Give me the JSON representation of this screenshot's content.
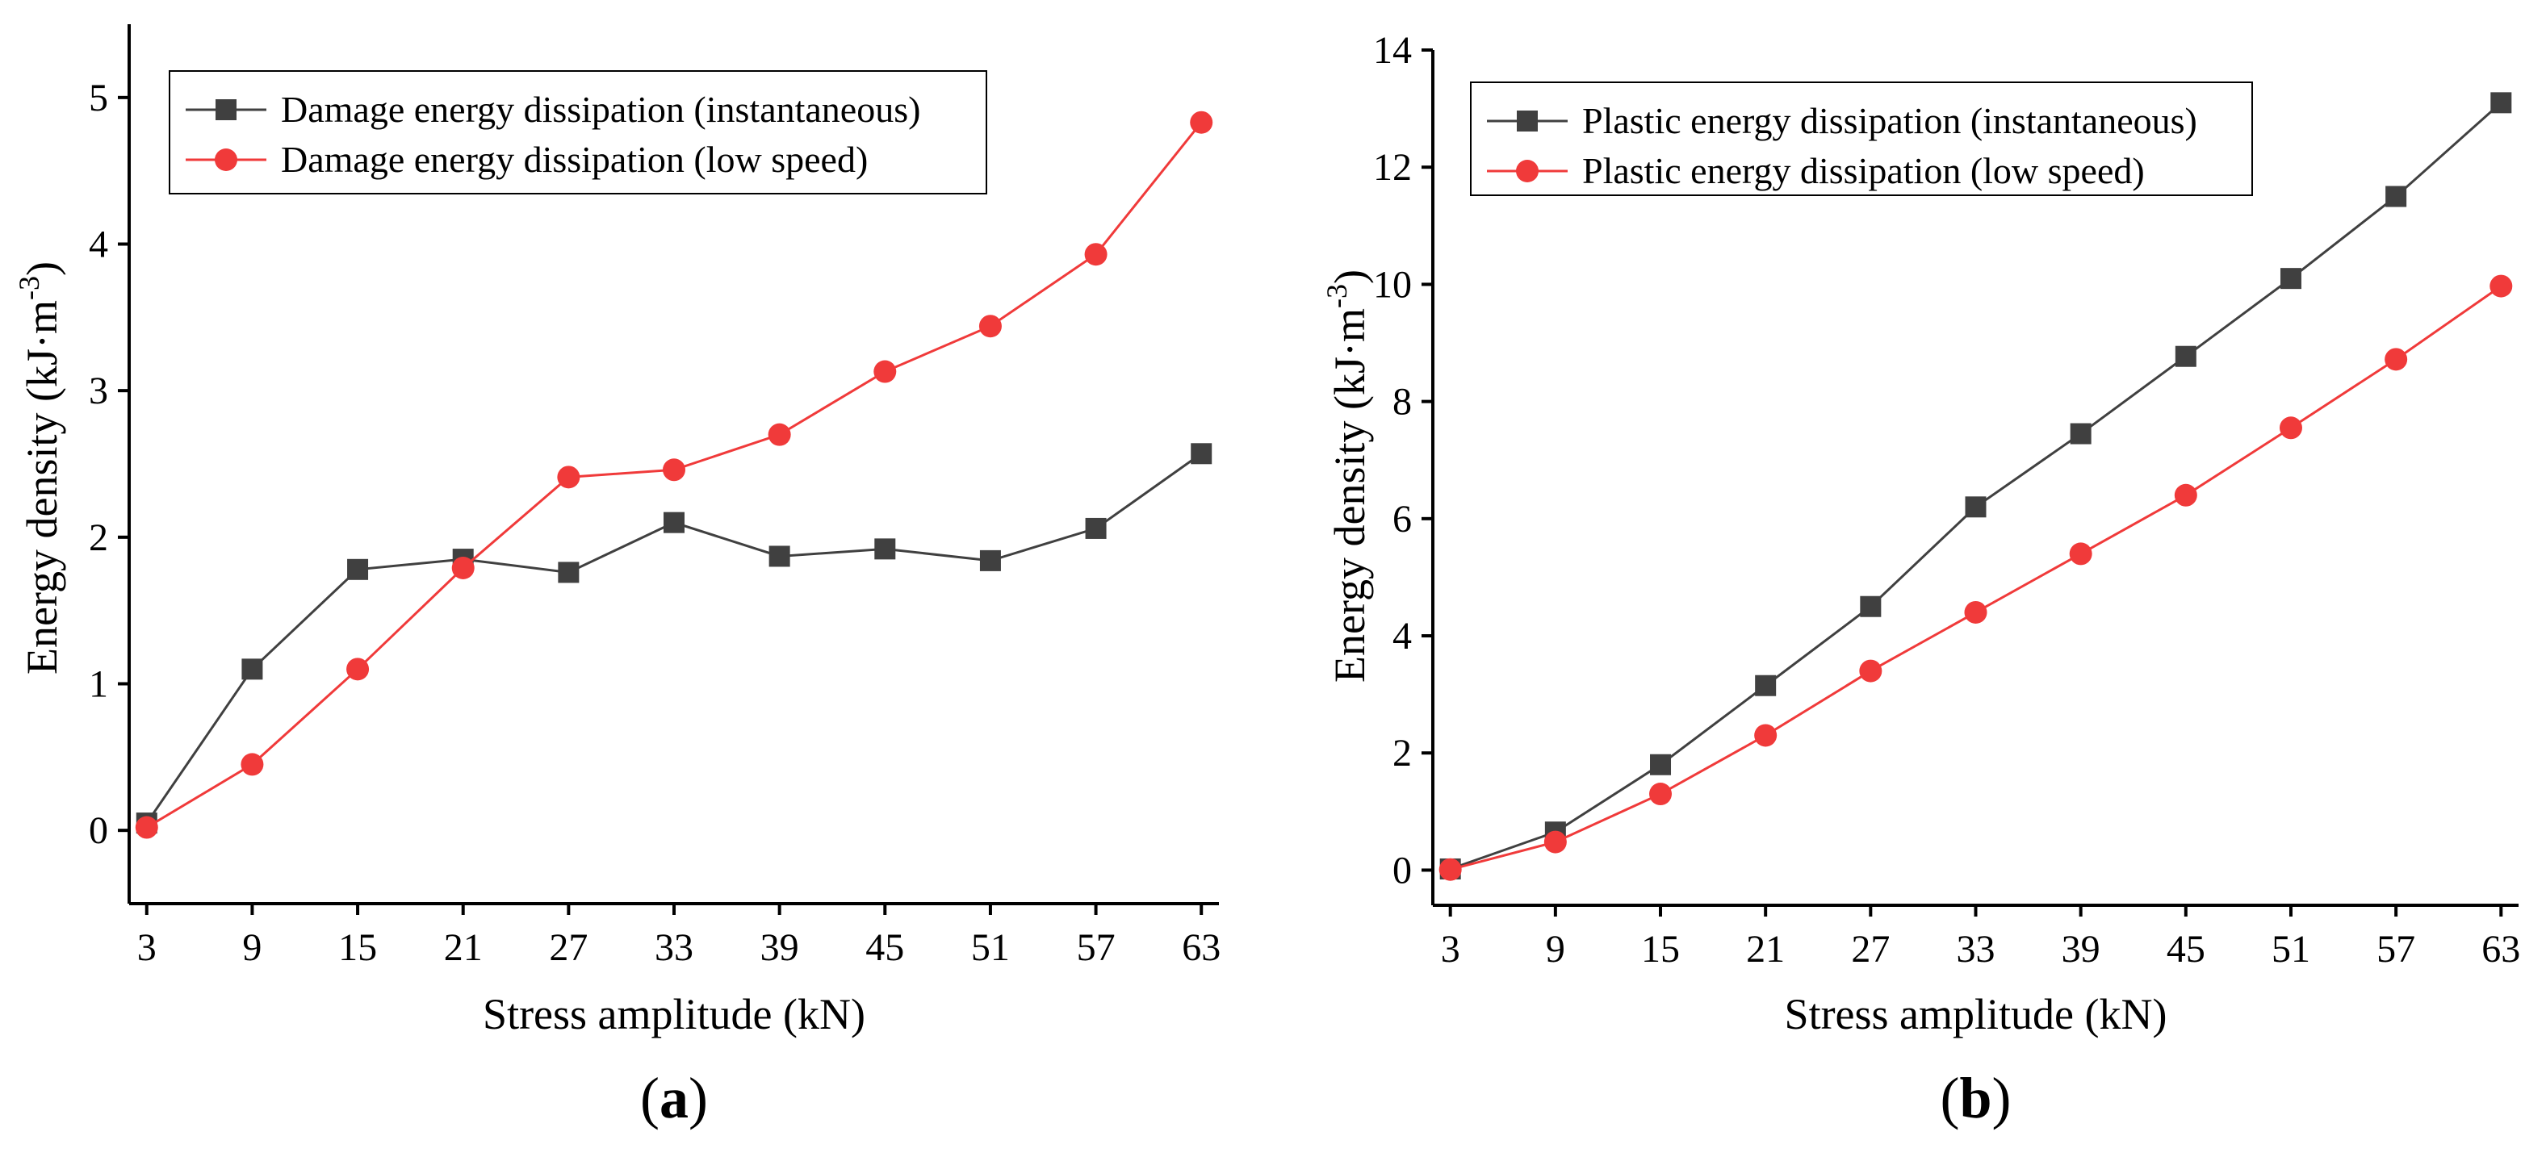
{
  "chart_data": [
    {
      "type": "line",
      "panel_label": "a",
      "xlabel": "Stress amplitude (kN)",
      "ylabel_main": "Energy density (kJ·m",
      "ylabel_sup": "-3",
      "ylabel_close": ")",
      "x": [
        3,
        9,
        15,
        21,
        27,
        33,
        39,
        45,
        51,
        57,
        63
      ],
      "x_ticks": [
        "3",
        "9",
        "15",
        "21",
        "27",
        "33",
        "39",
        "45",
        "51",
        "57",
        "63"
      ],
      "xlim": [
        2,
        64
      ],
      "ylim": [
        -0.5,
        5.5
      ],
      "y_ticks": [
        0,
        1,
        2,
        3,
        4,
        5
      ],
      "y_ticklabels": [
        "0",
        "1",
        "2",
        "3",
        "4",
        "5"
      ],
      "legend_position": "top-left",
      "series": [
        {
          "name": "Damage energy dissipation (instantaneous)",
          "color": "#404040",
          "marker": "square",
          "values": [
            0.05,
            1.1,
            1.78,
            1.85,
            1.76,
            2.1,
            1.87,
            1.92,
            1.84,
            2.06,
            2.57
          ]
        },
        {
          "name": "Damage energy dissipation  (low speed)",
          "color": "#f03a3a",
          "marker": "circle",
          "values": [
            0.02,
            0.45,
            1.1,
            1.79,
            2.41,
            2.46,
            2.7,
            3.13,
            3.44,
            3.93,
            4.83
          ]
        }
      ]
    },
    {
      "type": "line",
      "panel_label": "b",
      "xlabel": "Stress amplitude (kN)",
      "ylabel_main": "Energy density (kJ·m",
      "ylabel_sup": "-3",
      "ylabel_close": ")",
      "x": [
        3,
        9,
        15,
        21,
        27,
        33,
        39,
        45,
        51,
        57,
        63
      ],
      "x_ticks": [
        "3",
        "9",
        "15",
        "21",
        "27",
        "33",
        "39",
        "45",
        "51",
        "57",
        "63"
      ],
      "xlim": [
        2,
        64
      ],
      "ylim": [
        -0.6,
        14
      ],
      "y_ticks": [
        0,
        2,
        4,
        6,
        8,
        10,
        12,
        14
      ],
      "y_ticklabels": [
        "0",
        "2",
        "4",
        "6",
        "8",
        "10",
        "12",
        "14"
      ],
      "legend_position": "top-left",
      "series": [
        {
          "name": "Plastic energy dissipation (instantaneous)",
          "color": "#404040",
          "marker": "square",
          "values": [
            0.02,
            0.65,
            1.8,
            3.15,
            4.5,
            6.2,
            7.45,
            8.77,
            10.1,
            11.5,
            13.1
          ]
        },
        {
          "name": "Plastic energy dissipation  (low speed)",
          "color": "#f03a3a",
          "marker": "circle",
          "values": [
            0.01,
            0.48,
            1.3,
            2.3,
            3.4,
            4.4,
            5.4,
            6.4,
            7.55,
            8.72,
            9.97
          ]
        }
      ]
    }
  ]
}
